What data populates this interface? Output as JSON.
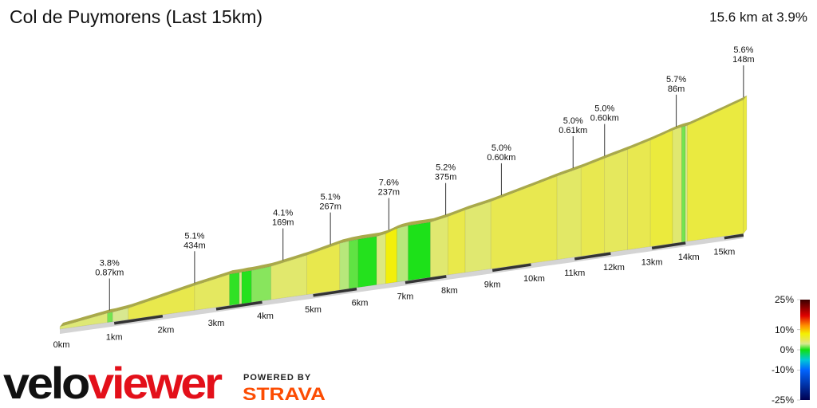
{
  "chart_data": {
    "type": "elevation-profile",
    "title": "Col de Puymorens (Last 15km)",
    "subtitle": "15.6 km at 3.9%",
    "xlim": [
      0,
      15.6
    ],
    "xticks": [
      {
        "value": 0,
        "label": "0km"
      },
      {
        "value": 1,
        "label": "1km"
      },
      {
        "value": 2,
        "label": "2km"
      },
      {
        "value": 3,
        "label": "3km"
      },
      {
        "value": 4,
        "label": "4km"
      },
      {
        "value": 5,
        "label": "5km"
      },
      {
        "value": 6,
        "label": "6km"
      },
      {
        "value": 7,
        "label": "7km"
      },
      {
        "value": 8,
        "label": "8km"
      },
      {
        "value": 9,
        "label": "9km"
      },
      {
        "value": 10,
        "label": "10km"
      },
      {
        "value": 11,
        "label": "11km"
      },
      {
        "value": 12,
        "label": "12km"
      },
      {
        "value": 13,
        "label": "13km"
      },
      {
        "value": 14,
        "label": "14km"
      },
      {
        "value": 15,
        "label": "15km"
      }
    ],
    "segments": [
      {
        "length": 0.9,
        "grade": 3.8
      },
      {
        "length": 0.1,
        "grade": 1.5
      },
      {
        "length": 0.3,
        "grade": 3.0
      },
      {
        "length": 1.3,
        "grade": 5.1
      },
      {
        "length": 0.7,
        "grade": 4.5
      },
      {
        "length": 0.2,
        "grade": 0.5
      },
      {
        "length": 0.05,
        "grade": 3.0
      },
      {
        "length": 0.2,
        "grade": 0.3
      },
      {
        "length": 0.4,
        "grade": 1.8
      },
      {
        "length": 0.75,
        "grade": 4.1
      },
      {
        "length": 0.7,
        "grade": 5.1
      },
      {
        "length": 0.2,
        "grade": 2.5
      },
      {
        "length": 0.2,
        "grade": 1.2
      },
      {
        "length": 0.4,
        "grade": 0.3
      },
      {
        "length": 0.2,
        "grade": 3.5
      },
      {
        "length": 0.25,
        "grade": 7.6
      },
      {
        "length": 0.25,
        "grade": 2.5
      },
      {
        "length": 0.5,
        "grade": 0.2
      },
      {
        "length": 0.4,
        "grade": 4.0
      },
      {
        "length": 0.4,
        "grade": 5.2
      },
      {
        "length": 0.6,
        "grade": 4.0
      },
      {
        "length": 1.6,
        "grade": 5.0
      },
      {
        "length": 0.6,
        "grade": 4.3
      },
      {
        "length": 0.6,
        "grade": 5.0
      },
      {
        "length": 0.6,
        "grade": 4.6
      },
      {
        "length": 0.6,
        "grade": 5.0
      },
      {
        "length": 0.6,
        "grade": 5.7
      },
      {
        "length": 0.25,
        "grade": 4.0
      },
      {
        "length": 0.1,
        "grade": 1.5
      },
      {
        "length": 0.05,
        "grade": 3.0
      },
      {
        "length": 1.6,
        "grade": 5.6
      }
    ],
    "annotations": [
      {
        "km": 0.94,
        "grade": "3.8%",
        "length": "0.87km"
      },
      {
        "km": 2.6,
        "grade": "5.1%",
        "length": "434m"
      },
      {
        "km": 4.4,
        "grade": "4.1%",
        "length": "169m"
      },
      {
        "km": 5.4,
        "grade": "5.1%",
        "length": "267m"
      },
      {
        "km": 6.67,
        "grade": "7.6%",
        "length": "237m"
      },
      {
        "km": 7.95,
        "grade": "5.2%",
        "length": "375m"
      },
      {
        "km": 9.25,
        "grade": "5.0%",
        "length": "0.60km"
      },
      {
        "km": 11.0,
        "grade": "5.0%",
        "length": "0.61km"
      },
      {
        "km": 11.8,
        "grade": "5.0%",
        "length": "0.60km"
      },
      {
        "km": 13.7,
        "grade": "5.7%",
        "length": "86m"
      },
      {
        "km": 15.6,
        "grade": "5.6%",
        "length": "148m"
      }
    ],
    "colorscale": {
      "stops": [
        {
          "value": -25,
          "color": "#000050"
        },
        {
          "value": -10,
          "color": "#0064ff"
        },
        {
          "value": -5,
          "color": "#00c8d8"
        },
        {
          "value": 0,
          "color": "#10e010"
        },
        {
          "value": 3,
          "color": "#d8e890"
        },
        {
          "value": 5,
          "color": "#e8e850"
        },
        {
          "value": 8,
          "color": "#f4f000"
        },
        {
          "value": 12,
          "color": "#ff9000"
        },
        {
          "value": 17,
          "color": "#e00000"
        },
        {
          "value": 25,
          "color": "#3a0000"
        }
      ],
      "ylim": [
        -25,
        25
      ],
      "yticks": [
        {
          "value": 25,
          "label": "25%"
        },
        {
          "value": 10,
          "label": "10%"
        },
        {
          "value": 0,
          "label": "0%"
        },
        {
          "value": -10,
          "label": "-10%"
        },
        {
          "value": -25,
          "label": "-25%"
        }
      ]
    }
  },
  "logo": {
    "part1": "velo",
    "part2": "viewer",
    "powered": "POWERED BY",
    "strava": "STRAVA"
  }
}
